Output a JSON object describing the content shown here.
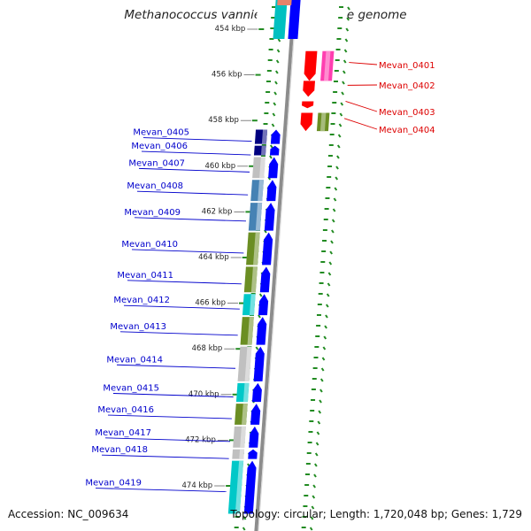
{
  "title": "Methanococcus vannielii SB, complete genome",
  "accession_text": "Accession: NC_009634",
  "topology_text": "Topology: circular; Length: 1,720,048 bp; Genes: 1,729",
  "colors": {
    "forward_label": "#0000cc",
    "reverse_label": "#dd0000",
    "tick": "#228b22",
    "cog_blue": "#0000ff",
    "cog_navy": "#000080",
    "cog_steel": "#4682b4",
    "cog_olive": "#6b8e23",
    "cog_cyan": "#00c8c8",
    "cog_gray": "#c0c0c0",
    "rev_red": "#ff0000",
    "rev_pink": "#ff3fb0"
  },
  "scale_labels": [
    {
      "text": "454 kbp",
      "kbp": 454
    },
    {
      "text": "456 kbp",
      "kbp": 456
    },
    {
      "text": "458 kbp",
      "kbp": 458
    },
    {
      "text": "460 kbp",
      "kbp": 460
    },
    {
      "text": "462 kbp",
      "kbp": 462
    },
    {
      "text": "464 kbp",
      "kbp": 464
    },
    {
      "text": "466 kbp",
      "kbp": 466
    },
    {
      "text": "468 kbp",
      "kbp": 468
    },
    {
      "text": "470 kbp",
      "kbp": 470
    },
    {
      "text": "472 kbp",
      "kbp": 472
    },
    {
      "text": "474 kbp",
      "kbp": 474
    }
  ],
  "forward_genes": [
    {
      "label": "Mevan_0405",
      "cog": "cog_navy"
    },
    {
      "label": "Mevan_0406",
      "cog": "cog_navy"
    },
    {
      "label": "Mevan_0407",
      "cog": "cog_gray"
    },
    {
      "label": "Mevan_0408",
      "cog": "cog_steel"
    },
    {
      "label": "Mevan_0409",
      "cog": "cog_steel"
    },
    {
      "label": "Mevan_0410",
      "cog": "cog_olive"
    },
    {
      "label": "Mevan_0411",
      "cog": "cog_olive"
    },
    {
      "label": "Mevan_0412",
      "cog": "cog_cyan"
    },
    {
      "label": "Mevan_0413",
      "cog": "cog_olive"
    },
    {
      "label": "Mevan_0414",
      "cog": "cog_gray"
    },
    {
      "label": "Mevan_0415",
      "cog": "cog_cyan"
    },
    {
      "label": "Mevan_0416",
      "cog": "cog_olive"
    },
    {
      "label": "Mevan_0417",
      "cog": "cog_gray"
    },
    {
      "label": "Mevan_0418",
      "cog": "cog_gray"
    },
    {
      "label": "Mevan_0419",
      "cog": "cog_cyan"
    }
  ],
  "reverse_genes": [
    {
      "label": "Mevan_0401",
      "cog": "rev_red"
    },
    {
      "label": "Mevan_0402",
      "cog": "rev_red"
    },
    {
      "label": "Mevan_0403",
      "cog": "rev_red"
    },
    {
      "label": "Mevan_0404",
      "cog": "cog_olive"
    }
  ]
}
